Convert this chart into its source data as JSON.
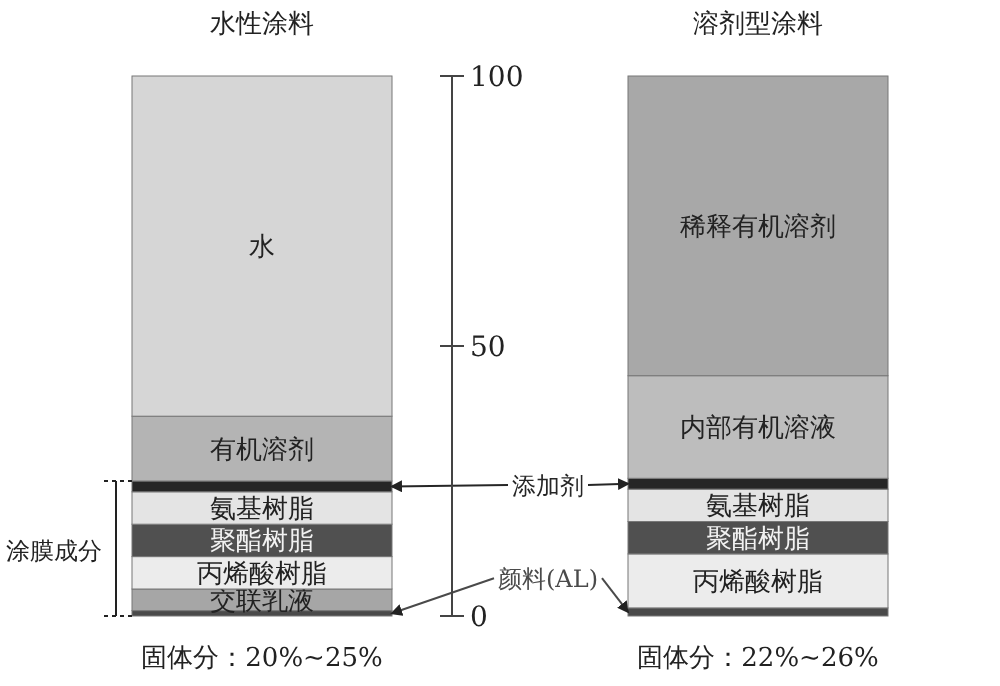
{
  "chart_data": {
    "type": "bar",
    "stacked": true,
    "legend": "center",
    "categories": [
      "水性涂料",
      "溶剂型涂料"
    ],
    "ylim": [
      0,
      100
    ],
    "yticks": [
      0,
      50,
      100
    ],
    "series": [
      {
        "name": "颜料(AL)",
        "color": "#4a4a4a",
        "values": [
          1,
          1.5
        ]
      },
      {
        "name": "交联乳液",
        "color": "#a6a6a6",
        "values": [
          4,
          null
        ]
      },
      {
        "name": "丙烯酸树脂",
        "color": "#ececec",
        "values": [
          6,
          10
        ]
      },
      {
        "name": "聚酯树脂",
        "color": "#505050",
        "values": [
          6,
          6
        ]
      },
      {
        "name": "氨基树脂",
        "color": "#e4e4e4",
        "values": [
          6,
          6
        ]
      },
      {
        "name": "添加剂",
        "color": "#262626",
        "values": [
          2,
          2
        ]
      },
      {
        "name": "有机溶剂",
        "color": "#b4b4b4",
        "values": [
          12,
          null
        ]
      },
      {
        "name": "内部有机溶液",
        "color": "#bdbdbd",
        "values": [
          null,
          19
        ]
      },
      {
        "name": "水",
        "color": "#d6d6d6",
        "values": [
          63,
          null
        ]
      },
      {
        "name": "稀释有机溶剂",
        "color": "#a8a8a8",
        "values": [
          null,
          55.5
        ]
      }
    ],
    "annotations": [
      "涂膜成分",
      "固体分：20%~25%",
      "固体分：22%~26%"
    ]
  }
}
